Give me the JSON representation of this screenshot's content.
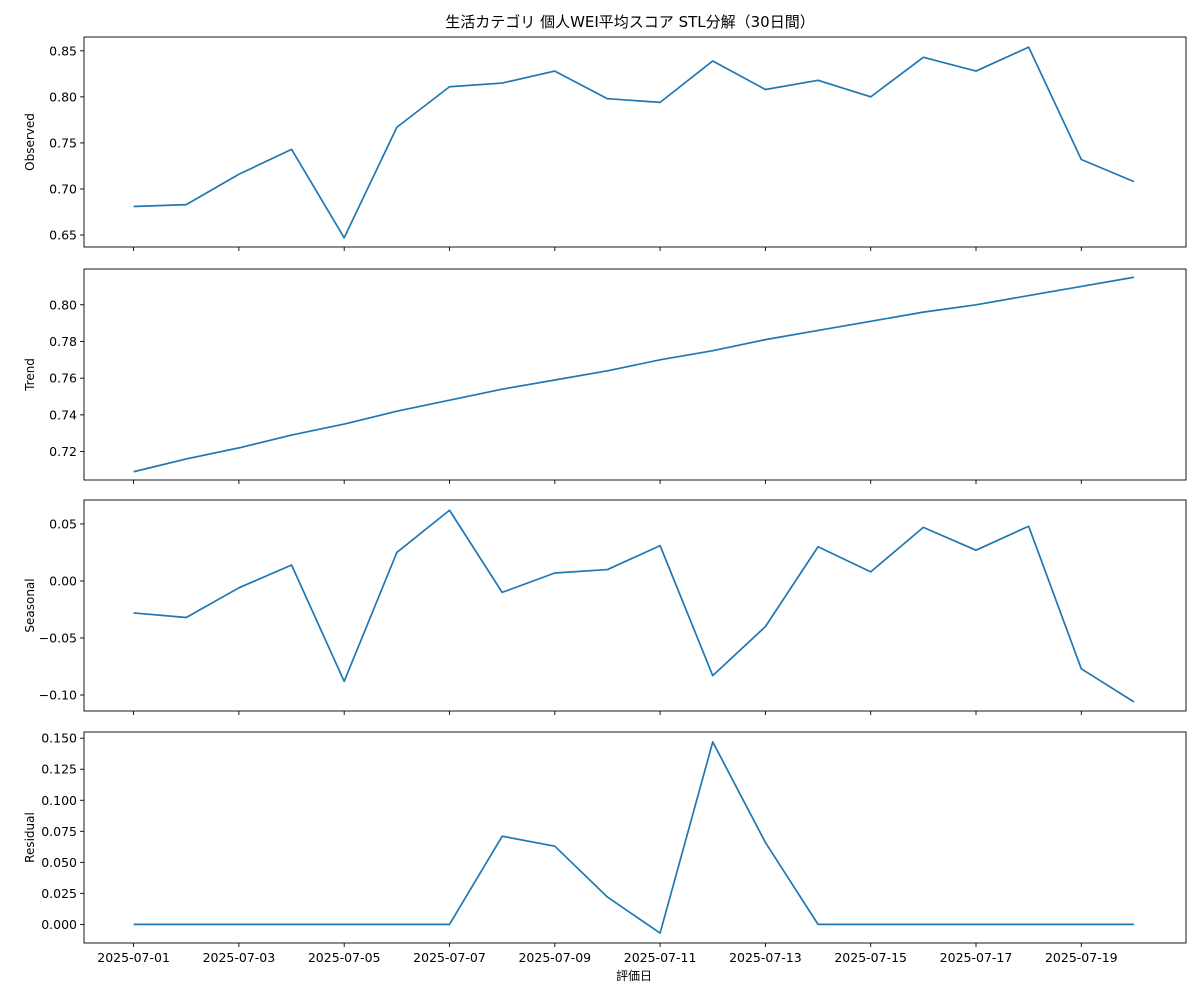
{
  "chart_data": {
    "type": "line",
    "title": "生活カテゴリ 個人WEI平均スコア STL分解（30日間）",
    "xlabel": "評価日",
    "x": [
      "2025-07-01",
      "2025-07-02",
      "2025-07-03",
      "2025-07-04",
      "2025-07-05",
      "2025-07-06",
      "2025-07-07",
      "2025-07-08",
      "2025-07-09",
      "2025-07-10",
      "2025-07-11",
      "2025-07-12",
      "2025-07-13",
      "2025-07-14",
      "2025-07-15",
      "2025-07-16",
      "2025-07-17",
      "2025-07-18",
      "2025-07-19",
      "2025-07-20"
    ],
    "xtick_labels": [
      "2025-07-01",
      "2025-07-03",
      "2025-07-05",
      "2025-07-07",
      "2025-07-09",
      "2025-07-11",
      "2025-07-13",
      "2025-07-15",
      "2025-07-17",
      "2025-07-19"
    ],
    "line_color": "#1f77b4",
    "panels": [
      {
        "ylabel": "Observed",
        "ylim": [
          0.637,
          0.865
        ],
        "yticks": [
          "0.65",
          "0.70",
          "0.75",
          "0.80",
          "0.85"
        ],
        "values": [
          0.681,
          0.683,
          0.716,
          0.743,
          0.647,
          0.767,
          0.811,
          0.815,
          0.828,
          0.798,
          0.794,
          0.839,
          0.808,
          0.818,
          0.8,
          0.843,
          0.828,
          0.854,
          0.732,
          0.708
        ]
      },
      {
        "ylabel": "Trend",
        "ylim": [
          0.7045,
          0.8195
        ],
        "yticks": [
          "0.72",
          "0.74",
          "0.76",
          "0.78",
          "0.80"
        ],
        "values": [
          0.709,
          0.716,
          0.722,
          0.729,
          0.735,
          0.742,
          0.748,
          0.754,
          0.759,
          0.764,
          0.77,
          0.775,
          0.781,
          0.786,
          0.791,
          0.796,
          0.8,
          0.805,
          0.81,
          0.815
        ]
      },
      {
        "ylabel": "Seasonal",
        "ylim": [
          -0.114,
          0.071
        ],
        "yticks": [
          "0.05",
          "0.00",
          "−0.05",
          "−0.10"
        ],
        "values": [
          -0.028,
          -0.032,
          -0.006,
          0.014,
          -0.088,
          0.025,
          0.062,
          -0.01,
          0.007,
          0.01,
          0.031,
          -0.083,
          -0.04,
          0.03,
          0.008,
          0.047,
          0.027,
          0.048,
          -0.077,
          -0.106
        ]
      },
      {
        "ylabel": "Residual",
        "ylim": [
          -0.015,
          0.155
        ],
        "yticks": [
          "0.150",
          "0.125",
          "0.100",
          "0.075",
          "0.050",
          "0.025",
          "0.000"
        ],
        "values": [
          0.0,
          0.0,
          0.0,
          0.0,
          0.0,
          0.0,
          0.0,
          0.071,
          0.063,
          0.022,
          -0.007,
          0.147,
          0.066,
          0.0,
          0.0,
          0.0,
          0.0,
          0.0,
          0.0,
          0.0
        ]
      }
    ]
  }
}
